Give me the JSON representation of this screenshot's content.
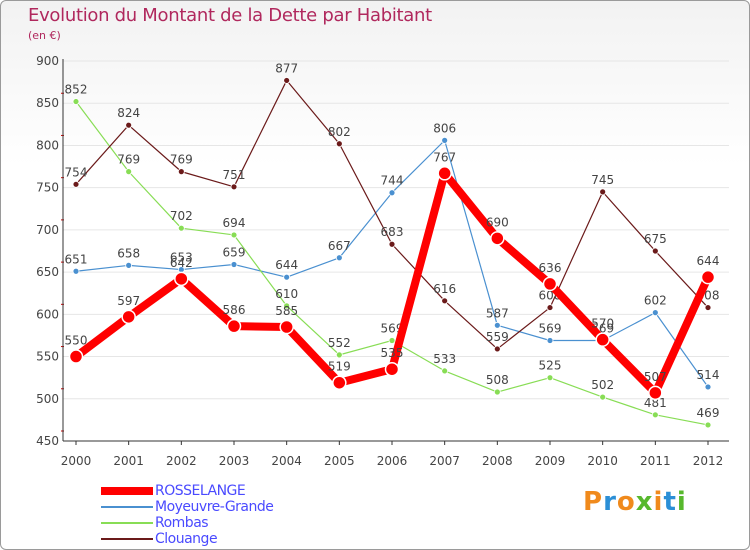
{
  "title": "Evolution du Montant de la Dette par Habitant",
  "unit_label": "(en €)",
  "brand": "Proxiti",
  "chart_data": {
    "type": "line",
    "x": [
      "2000",
      "2001",
      "2002",
      "2003",
      "2004",
      "2005",
      "2006",
      "2007",
      "2008",
      "2009",
      "2010",
      "2011",
      "2012"
    ],
    "ylim": [
      450,
      900
    ],
    "yticks": [
      450,
      500,
      550,
      600,
      650,
      700,
      750,
      800,
      850,
      900
    ],
    "grid": true,
    "legend_position": "bottom-left",
    "series": [
      {
        "name": "ROSSELANGE",
        "color": "#ff0000",
        "emphasis": true,
        "values": [
          550,
          597,
          642,
          586,
          585,
          519,
          535,
          767,
          690,
          636,
          570,
          507,
          644
        ]
      },
      {
        "name": "Moyeuvre-Grande",
        "color": "#4a90d0",
        "values": [
          651,
          658,
          653,
          659,
          644,
          667,
          744,
          806,
          587,
          569,
          569,
          602,
          514
        ]
      },
      {
        "name": "Rombas",
        "color": "#88dd55",
        "values": [
          852,
          769,
          702,
          694,
          610,
          552,
          569,
          533,
          508,
          525,
          502,
          481,
          469
        ]
      },
      {
        "name": "Clouange",
        "color": "#6b1a1a",
        "values": [
          754,
          824,
          769,
          751,
          877,
          802,
          683,
          616,
          559,
          608,
          745,
          675,
          608
        ]
      }
    ]
  }
}
